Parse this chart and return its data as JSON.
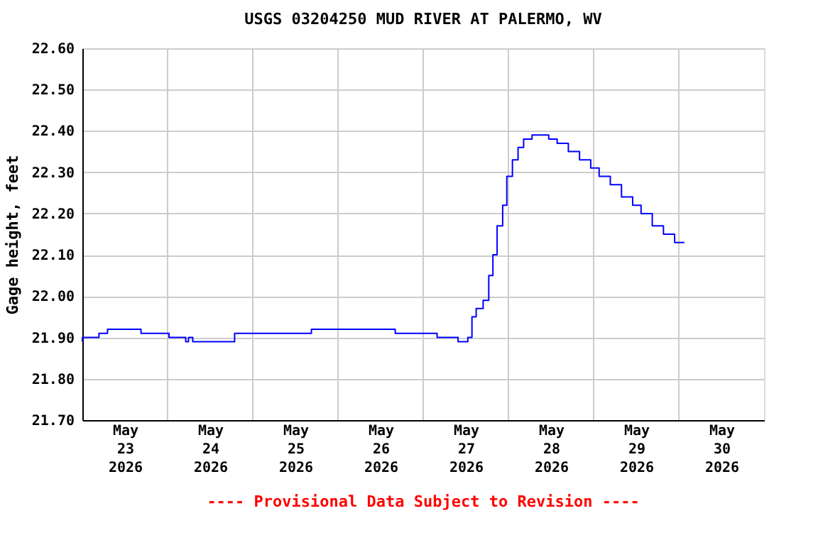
{
  "chart_data": {
    "type": "step",
    "title": "USGS 03204250 MUD RIVER AT PALERMO, WV",
    "ylabel": "Gage height, feet",
    "annotations": [
      "---- Provisional Data Subject to Revision ----"
    ],
    "x": [
      "2026-05-23T00:00",
      "2026-05-23T04:40",
      "2026-05-23T07:05",
      "2026-05-23T11:48",
      "2026-05-23T16:31",
      "2026-05-23T17:42",
      "2026-05-24T00:24",
      "2026-05-24T05:07",
      "2026-05-24T05:54",
      "2026-05-24T07:05",
      "2026-05-24T11:01",
      "2026-05-24T18:53",
      "2026-05-24T19:40",
      "2026-05-25T04:43",
      "2026-05-25T16:31",
      "2026-05-25T22:25",
      "2026-05-26T04:19",
      "2026-05-26T16:07",
      "2026-05-26T18:05",
      "2026-05-27T03:55",
      "2026-05-27T05:53",
      "2026-05-27T09:49",
      "2026-05-27T12:34",
      "2026-05-27T13:44",
      "2026-05-27T14:55",
      "2026-05-27T16:53",
      "2026-05-27T18:28",
      "2026-05-27T19:38",
      "2026-05-27T20:49",
      "2026-05-27T22:23",
      "2026-05-27T23:33",
      "2026-05-28T01:08",
      "2026-05-28T02:43",
      "2026-05-28T04:17",
      "2026-05-28T06:39",
      "2026-05-28T08:37",
      "2026-05-28T11:22",
      "2026-05-28T13:44",
      "2026-05-28T16:53",
      "2026-05-28T20:02",
      "2026-05-28T23:11",
      "2026-05-29T01:33",
      "2026-05-29T04:42",
      "2026-05-29T07:51",
      "2026-05-29T11:00",
      "2026-05-29T13:22",
      "2026-05-29T16:31",
      "2026-05-29T19:40",
      "2026-05-29T22:49",
      "2026-05-30T01:34"
    ],
    "series": [
      {
        "color": "#0000ff",
        "values": [
          21.89,
          21.9,
          21.91,
          21.92,
          21.92,
          21.91,
          21.91,
          21.9,
          21.89,
          21.9,
          21.89,
          21.89,
          21.91,
          21.91,
          21.91,
          21.92,
          21.92,
          21.92,
          21.91,
          21.91,
          21.9,
          21.9,
          21.89,
          21.9,
          21.95,
          21.97,
          21.99,
          22.05,
          22.1,
          22.17,
          22.22,
          22.29,
          22.33,
          22.36,
          22.38,
          22.39,
          22.39,
          22.38,
          22.37,
          22.35,
          22.33,
          22.31,
          22.29,
          22.27,
          22.24,
          22.22,
          22.2,
          22.17,
          22.15,
          22.13
        ]
      }
    ],
    "xlim": [
      "2026-05-23T00:00",
      "2026-05-31T00:00"
    ],
    "xticks": [
      {
        "value": "2026-05-23T12:00",
        "label": "May 23 2026"
      },
      {
        "value": "2026-05-24T00:00",
        "label": null
      },
      {
        "value": "2026-05-24T12:00",
        "label": "May 24 2026"
      },
      {
        "value": "2026-05-25T00:00",
        "label": null
      },
      {
        "value": "2026-05-25T12:00",
        "label": "May 25 2026"
      },
      {
        "value": "2026-05-26T00:00",
        "label": null
      },
      {
        "value": "2026-05-26T12:00",
        "label": "May 26 2026"
      },
      {
        "value": "2026-05-27T00:00",
        "label": null
      },
      {
        "value": "2026-05-27T12:00",
        "label": "May 27 2026"
      },
      {
        "value": "2026-05-28T00:00",
        "label": null
      },
      {
        "value": "2026-05-28T12:00",
        "label": "May 28 2026"
      },
      {
        "value": "2026-05-29T00:00",
        "label": null
      },
      {
        "value": "2026-05-29T12:00",
        "label": "May 29 2026"
      },
      {
        "value": "2026-05-30T00:00",
        "label": null
      },
      {
        "value": "2026-05-30T12:00",
        "label": "May 30 2026"
      }
    ],
    "ylim": [
      21.7,
      22.6
    ],
    "yticks": [
      {
        "value": 21.7,
        "label": "21.70"
      },
      {
        "value": 21.8,
        "label": "21.80"
      },
      {
        "value": 21.9,
        "label": "21.90"
      },
      {
        "value": 22.0,
        "label": "22.00"
      },
      {
        "value": 22.1,
        "label": "22.10"
      },
      {
        "value": 22.2,
        "label": "22.20"
      },
      {
        "value": 22.3,
        "label": "22.30"
      },
      {
        "value": 22.4,
        "label": "22.40"
      },
      {
        "value": 22.5,
        "label": "22.50"
      },
      {
        "value": 22.6,
        "label": "22.60"
      }
    ],
    "grid": true,
    "marker": "none",
    "line_style": "solid"
  }
}
